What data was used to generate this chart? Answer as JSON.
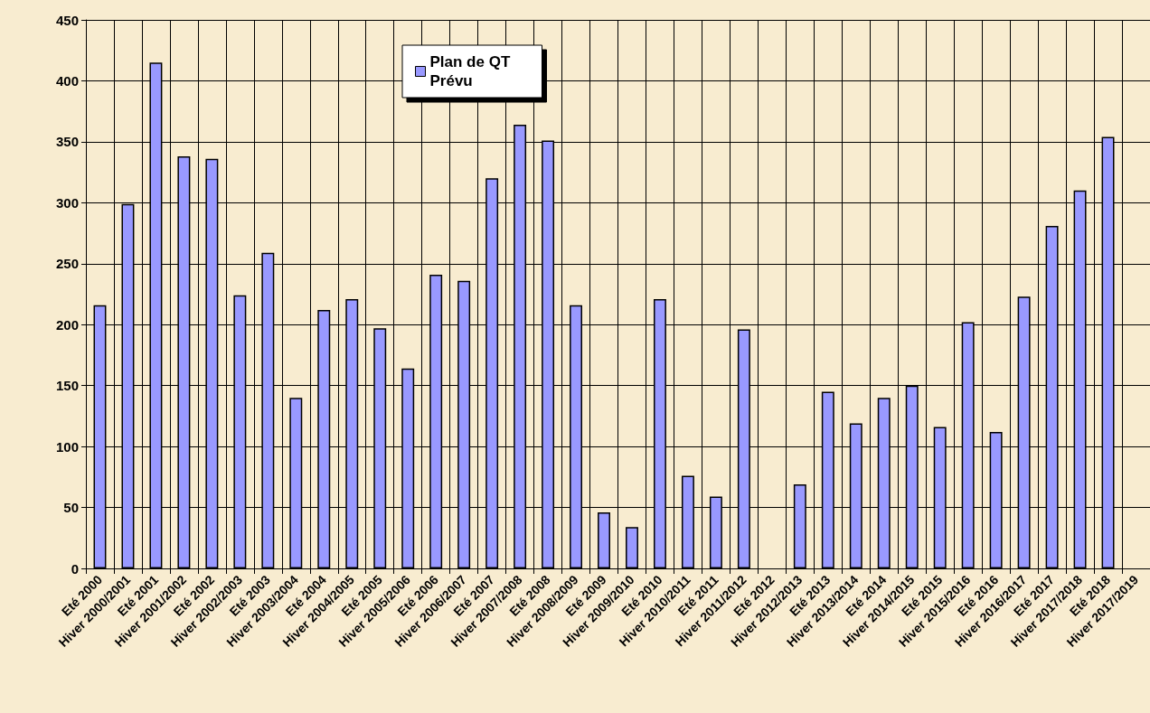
{
  "chart_data": {
    "type": "bar",
    "categories": [
      "Eté 2000",
      "Hiver 2000/2001",
      "Eté 2001",
      "Hiver 2001/2002",
      "Eté 2002",
      "Hiver 2002/2003",
      "Eté 2003",
      "Hiver 2003/2004",
      "Eté 2004",
      "Hiver 2004/2005",
      "Eté 2005",
      "Hiver 2005/2006",
      "Eté 2006",
      "Hiver 2006/2007",
      "Eté 2007",
      "Hiver 2007/2008",
      "Eté 2008",
      "Hiver 2008/2009",
      "Eté 2009",
      "Hiver 2009/2010",
      "Eté 2010",
      "Hiver 2010/2011",
      "Eté 2011",
      "Hiver 2011/2012",
      "Eté 2012",
      "Hiver 2012/2013",
      "Eté 2013",
      "Hiver 2013/2014",
      "Eté 2014",
      "Hiver 2014/2015",
      "Eté 2015",
      "Hiver 2015/2016",
      "Eté 2016",
      "Hiver 2016/2017",
      "Eté 2017",
      "Hiver 2017/2018",
      "Eté 2018",
      "Hiver 2017/2019"
    ],
    "series": [
      {
        "name": "Plan de QT Prévu",
        "color": "#9999ff",
        "values": [
          216,
          299,
          415,
          338,
          336,
          224,
          259,
          140,
          212,
          221,
          197,
          164,
          241,
          236,
          320,
          364,
          351,
          216,
          46,
          34,
          221,
          76,
          59,
          196,
          null,
          69,
          145,
          119,
          140,
          150,
          116,
          202,
          112,
          223,
          281,
          310,
          354,
          null
        ]
      }
    ],
    "ylim": [
      0,
      450
    ],
    "yticks": [
      0,
      50,
      100,
      150,
      200,
      250,
      300,
      350,
      400,
      450
    ],
    "grid": true,
    "legend": "top"
  }
}
